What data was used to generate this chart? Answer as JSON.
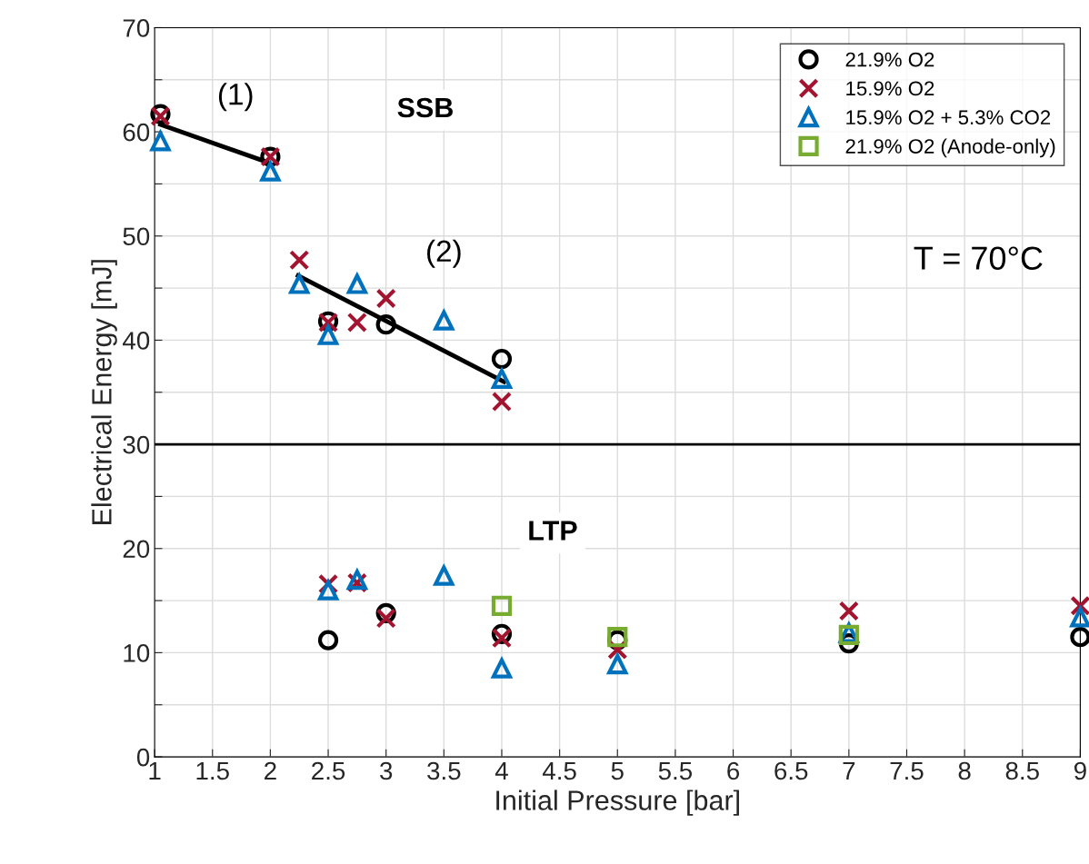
{
  "chart_data": {
    "type": "scatter",
    "xlabel": "Initial Pressure [bar]",
    "ylabel": "Electrical Energy [mJ]",
    "xlim": [
      1,
      9
    ],
    "ylim": [
      0,
      70
    ],
    "xticks": [
      1,
      1.5,
      2,
      2.5,
      3,
      3.5,
      4,
      4.5,
      5,
      5.5,
      6,
      6.5,
      7,
      7.5,
      8,
      8.5,
      9
    ],
    "yticks": [
      0,
      {
        "value": 5,
        "label": null
      },
      10,
      {
        "value": 15,
        "label": null
      },
      20,
      {
        "value": 25,
        "label": null
      },
      30,
      {
        "value": 35,
        "label": null
      },
      40,
      {
        "value": 45,
        "label": null
      },
      50,
      {
        "value": 55,
        "label": null
      },
      60,
      {
        "value": 65,
        "label": null
      },
      70
    ],
    "grid": true,
    "legend": "top right",
    "series": [
      {
        "name": "21.9% O2",
        "color": "#000000",
        "marker": "circle",
        "x": [
          1.05,
          2,
          2.5,
          3,
          4,
          2.5,
          3,
          4,
          5,
          7,
          9
        ],
        "values": [
          61.7,
          57.6,
          41.8,
          41.5,
          38.2,
          11.2,
          13.8,
          11.8,
          11.2,
          10.9,
          11.5
        ]
      },
      {
        "name": "15.9% O2",
        "color": "#a2142f",
        "marker": "cross",
        "x": [
          1.05,
          2,
          2.25,
          2.5,
          2.75,
          3,
          4,
          2.5,
          2.75,
          3,
          4,
          5,
          7,
          9
        ],
        "values": [
          61.5,
          57.6,
          47.7,
          41.7,
          41.7,
          44.0,
          34.1,
          16.6,
          16.7,
          13.3,
          11.4,
          10.3,
          14.0,
          14.5
        ]
      },
      {
        "name": "15.9% O2 + 5.3% CO2",
        "color": "#0072bd",
        "marker": "triangle",
        "x": [
          1.05,
          2,
          2.25,
          2.5,
          2.75,
          3.5,
          4,
          2.5,
          2.75,
          3.5,
          4,
          5,
          7,
          9
        ],
        "values": [
          59.1,
          56.2,
          45.4,
          40.5,
          45.4,
          41.9,
          36.3,
          16.0,
          17.0,
          17.4,
          8.5,
          8.9,
          11.9,
          13.4
        ]
      },
      {
        "name": "21.9% O2 (Anode-only)",
        "color": "#77ac30",
        "marker": "square",
        "x": [
          4,
          5,
          7
        ],
        "values": [
          14.5,
          11.5,
          11.7
        ]
      },
      {
        "type": "line",
        "color": "#000000",
        "marker": "none",
        "x": [
          1.05,
          1.97
        ],
        "values": [
          60.7,
          57.1
        ]
      },
      {
        "type": "line",
        "color": "#000000",
        "marker": "none",
        "x": [
          2.24,
          4.02
        ],
        "values": [
          46.2,
          36.0
        ]
      }
    ],
    "ref_lines": [
      {
        "axis": "y",
        "value": 30,
        "color": "#000000"
      }
    ],
    "annotations": [
      "(1)",
      "(2)",
      "SSB",
      "LTP",
      "T = 70°C"
    ]
  }
}
